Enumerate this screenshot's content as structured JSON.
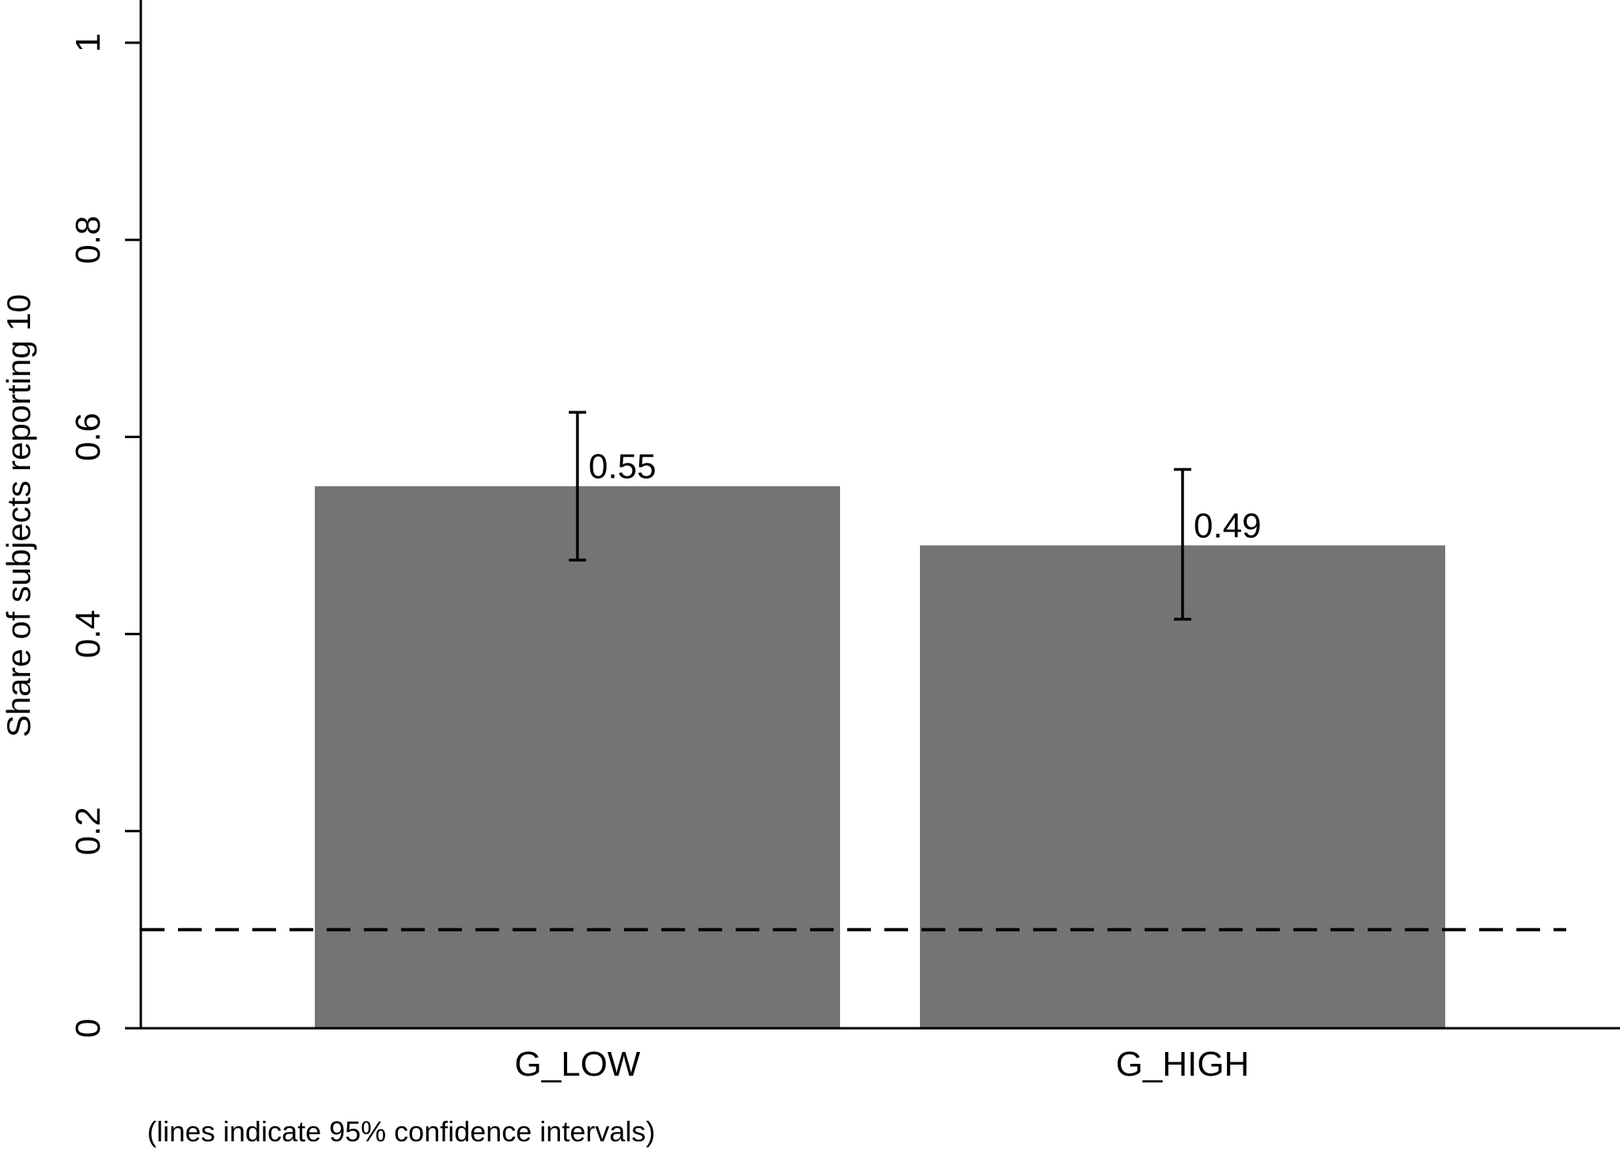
{
  "chart_data": {
    "type": "bar",
    "categories": [
      "G_LOW",
      "G_HIGH"
    ],
    "values": [
      0.55,
      0.49
    ],
    "data_labels": [
      "0.55",
      "0.49"
    ],
    "ci": [
      [
        0.475,
        0.625
      ],
      [
        0.415,
        0.567
      ]
    ],
    "reference_line": 0.1,
    "title": "",
    "xlabel": "",
    "ylabel": "Share of subjects reporting 10",
    "ylim": [
      0,
      1
    ],
    "yticks": [
      0,
      0.2,
      0.4,
      0.6,
      0.8,
      1
    ],
    "ytick_labels": [
      "0",
      "0.2",
      "0.4",
      "0.6",
      "0.8",
      "1"
    ],
    "note": "(lines indicate 95% confidence intervals)",
    "grid": false,
    "legend": "none",
    "colors": {
      "bar": "#747474",
      "axis": "#000000",
      "errorbar": "#000000",
      "reference_line": "#000000",
      "background": "#ffffff"
    }
  }
}
